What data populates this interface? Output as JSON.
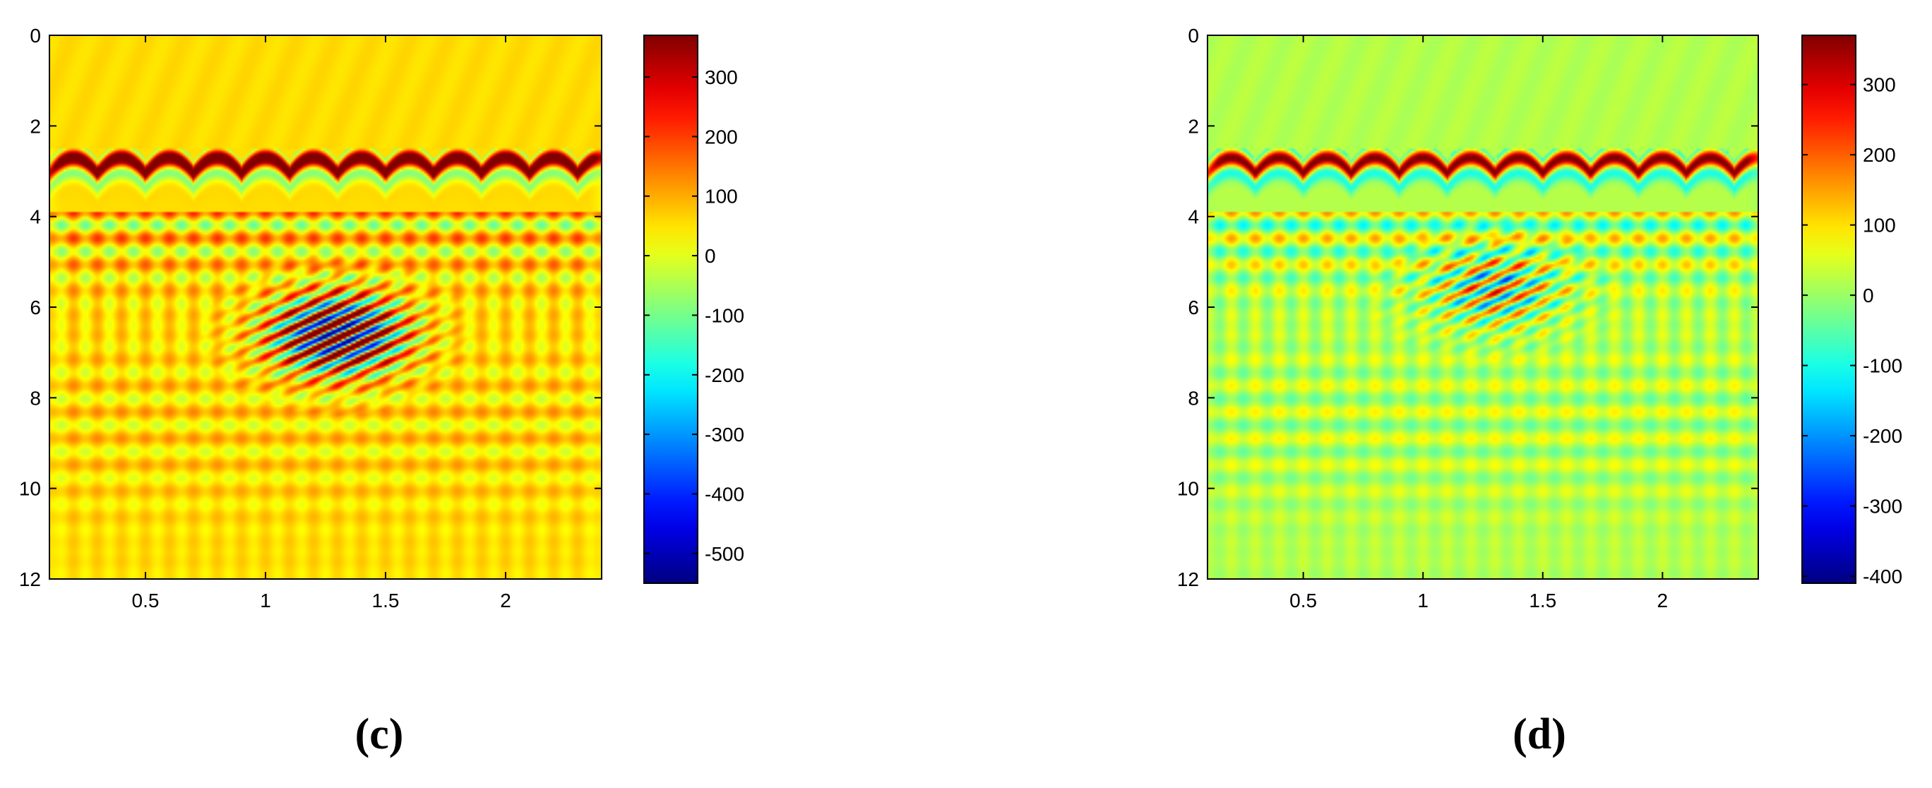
{
  "chart_data": [
    {
      "type": "heatmap",
      "caption": "(c)",
      "x_ticks": [
        0.5,
        1,
        1.5,
        2
      ],
      "x_tick_labels": [
        "0.5",
        "1",
        "1.5",
        "2"
      ],
      "xlim": [
        0.1,
        2.4
      ],
      "y_ticks": [
        0,
        2,
        4,
        6,
        8,
        10,
        12
      ],
      "y_tick_labels": [
        "0",
        "2",
        "4",
        "6",
        "8",
        "10",
        "12"
      ],
      "ylim": [
        0,
        12
      ],
      "y_reversed": true,
      "colorbar": {
        "colormap": "jet",
        "range": [
          -550,
          370
        ],
        "ticks": [
          300,
          200,
          100,
          0,
          -100,
          -200,
          -300,
          -400,
          -500
        ],
        "tick_labels": [
          "300",
          "200",
          "100",
          "0",
          "-100",
          "-200",
          "-300",
          "-400",
          "-500"
        ]
      },
      "features": {
        "direct_wave_depth": [
          2.7,
          3.7
        ],
        "scatterer_center": [
          1.3,
          6.6
        ],
        "scatterer_strength": 1.0,
        "background_value": 55,
        "hyperbola_spacing": 0.2
      }
    },
    {
      "type": "heatmap",
      "caption": "(d)",
      "x_ticks": [
        0.5,
        1,
        1.5,
        2
      ],
      "x_tick_labels": [
        "0.5",
        "1",
        "1.5",
        "2"
      ],
      "xlim": [
        0.1,
        2.4
      ],
      "y_ticks": [
        0,
        2,
        4,
        6,
        8,
        10,
        12
      ],
      "y_tick_labels": [
        "0",
        "2",
        "4",
        "6",
        "8",
        "10",
        "12"
      ],
      "ylim": [
        0,
        12
      ],
      "y_reversed": true,
      "colorbar": {
        "colormap": "jet",
        "range": [
          -410,
          370
        ],
        "ticks": [
          300,
          200,
          100,
          0,
          -100,
          -200,
          -300,
          -400
        ],
        "tick_labels": [
          "300",
          "200",
          "100",
          "0",
          "-100",
          "-200",
          "-300",
          "-400"
        ]
      },
      "features": {
        "direct_wave_depth": [
          2.7,
          3.7
        ],
        "scatterer_center": [
          1.3,
          5.6
        ],
        "scatterer_strength": 0.45,
        "background_value": 20,
        "hyperbola_spacing": 0.2
      }
    }
  ]
}
